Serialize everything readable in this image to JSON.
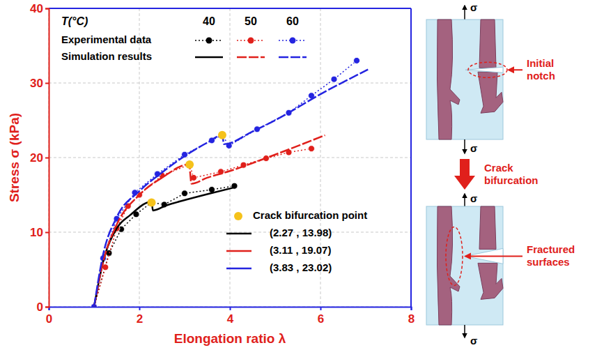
{
  "chart_data": {
    "type": "line",
    "x_label": "Elongation ratio λ",
    "y_label": "Stress σ (kPa)",
    "xlim": [
      0,
      8
    ],
    "xticks": [
      0,
      2,
      4,
      6,
      8
    ],
    "ylim": [
      0,
      40
    ],
    "yticks": [
      0,
      10,
      20,
      30,
      40
    ],
    "grid": true,
    "legend": "top-left",
    "legend_table": {
      "title": "T(°C)",
      "columns": [
        "40",
        "50",
        "60"
      ],
      "rows": [
        "Experimental data",
        "Simulation results"
      ]
    },
    "series": [
      {
        "type": "scatter",
        "color": "#000000",
        "marker": "circle",
        "line_style": "dotted",
        "x": [
          1.0,
          1.33,
          1.6,
          1.93,
          2.27,
          2.55,
          3.0,
          3.6,
          4.1
        ],
        "values": [
          0,
          7.2,
          10.4,
          12.4,
          13.98,
          13.7,
          15.2,
          15.7,
          16.2
        ]
      },
      {
        "type": "scatter",
        "color": "#e0201b",
        "marker": "circle",
        "line_style": "dotted",
        "x": [
          1.0,
          1.25,
          1.5,
          1.75,
          2.0,
          2.5,
          3.11,
          3.2,
          3.8,
          4.3,
          4.8,
          5.3,
          5.8
        ],
        "values": [
          0,
          5.3,
          10.5,
          13.5,
          15.0,
          17.6,
          19.07,
          17.3,
          18.1,
          19.0,
          19.9,
          20.7,
          21.2
        ]
      },
      {
        "type": "scatter",
        "color": "#2424e0",
        "marker": "circle",
        "line_style": "dotted",
        "x": [
          1.0,
          1.2,
          1.5,
          1.9,
          2.4,
          3.0,
          3.6,
          3.83,
          3.98,
          4.6,
          5.3,
          5.8,
          6.3,
          6.8
        ],
        "values": [
          0,
          6.5,
          11.8,
          15.3,
          17.8,
          20.4,
          22.3,
          23.02,
          21.6,
          23.8,
          26.0,
          28.3,
          30.5,
          33.0
        ]
      },
      {
        "type": "line",
        "color": "#000000",
        "line_style": "solid",
        "x": [
          1.0,
          1.2,
          1.5,
          1.8,
          2.27,
          2.3,
          2.6,
          3.0,
          3.5,
          4.1
        ],
        "values": [
          0,
          6.0,
          10.5,
          12.3,
          14.1,
          12.9,
          13.6,
          14.3,
          15.1,
          16.0
        ]
      },
      {
        "type": "line",
        "color": "#e0201b",
        "line_style": "dashed",
        "x": [
          1.0,
          1.2,
          1.5,
          2.0,
          2.5,
          3.1,
          3.15,
          3.5,
          4.0,
          5.0,
          6.1
        ],
        "values": [
          0,
          6.0,
          11.0,
          15.0,
          17.3,
          19.1,
          16.5,
          17.3,
          18.2,
          20.4,
          23.0
        ]
      },
      {
        "type": "line",
        "color": "#2424e0",
        "line_style": "dashed",
        "x": [
          1.0,
          1.2,
          1.5,
          2.0,
          2.5,
          3.0,
          3.5,
          3.83,
          3.87,
          4.5,
          5.0,
          6.0,
          7.05
        ],
        "values": [
          0,
          7.0,
          12.0,
          15.5,
          18.0,
          20.2,
          22.0,
          23.0,
          21.8,
          23.5,
          25.0,
          28.5,
          31.8
        ]
      }
    ],
    "bifurcation": {
      "label": "Crack bifurcation point",
      "color": "#f5c21b",
      "points": [
        {
          "x": 2.27,
          "y": 13.98,
          "label": "(2.27 , 13.98)",
          "color": "#000000"
        },
        {
          "x": 3.11,
          "y": 19.07,
          "label": "(3.11 , 19.07)",
          "color": "#e0201b"
        },
        {
          "x": 3.83,
          "y": 23.02,
          "label": "(3.83 , 23.02)",
          "color": "#2424e0"
        }
      ]
    },
    "schematic": {
      "stress_symbol": "σ",
      "labels": [
        "Initial notch",
        "Crack bifurcation",
        "Fractured surfaces"
      ]
    }
  }
}
